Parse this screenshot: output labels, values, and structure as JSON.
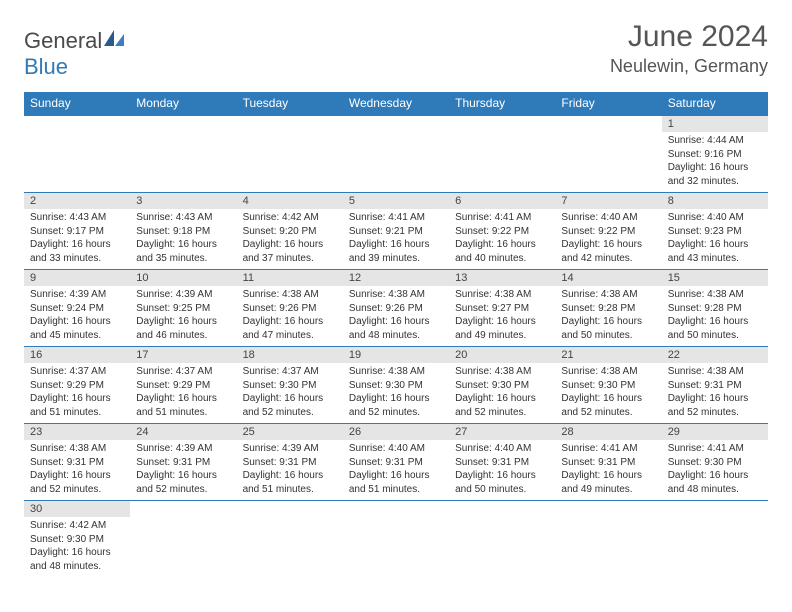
{
  "logo": {
    "general": "General",
    "blue": "Blue"
  },
  "title": "June 2024",
  "location": "Neulewin, Germany",
  "colors": {
    "header_bg": "#2f7ab8",
    "header_text": "#ffffff",
    "daynum_bg": "#e5e5e5",
    "border": "#2f7ab8",
    "text": "#333333",
    "title_text": "#555555"
  },
  "weekdays": [
    "Sunday",
    "Monday",
    "Tuesday",
    "Wednesday",
    "Thursday",
    "Friday",
    "Saturday"
  ],
  "labels": {
    "sunrise": "Sunrise:",
    "sunset": "Sunset:",
    "daylight": "Daylight:"
  },
  "days": {
    "1": {
      "sunrise": "4:44 AM",
      "sunset": "9:16 PM",
      "daylight": "16 hours and 32 minutes."
    },
    "2": {
      "sunrise": "4:43 AM",
      "sunset": "9:17 PM",
      "daylight": "16 hours and 33 minutes."
    },
    "3": {
      "sunrise": "4:43 AM",
      "sunset": "9:18 PM",
      "daylight": "16 hours and 35 minutes."
    },
    "4": {
      "sunrise": "4:42 AM",
      "sunset": "9:20 PM",
      "daylight": "16 hours and 37 minutes."
    },
    "5": {
      "sunrise": "4:41 AM",
      "sunset": "9:21 PM",
      "daylight": "16 hours and 39 minutes."
    },
    "6": {
      "sunrise": "4:41 AM",
      "sunset": "9:22 PM",
      "daylight": "16 hours and 40 minutes."
    },
    "7": {
      "sunrise": "4:40 AM",
      "sunset": "9:22 PM",
      "daylight": "16 hours and 42 minutes."
    },
    "8": {
      "sunrise": "4:40 AM",
      "sunset": "9:23 PM",
      "daylight": "16 hours and 43 minutes."
    },
    "9": {
      "sunrise": "4:39 AM",
      "sunset": "9:24 PM",
      "daylight": "16 hours and 45 minutes."
    },
    "10": {
      "sunrise": "4:39 AM",
      "sunset": "9:25 PM",
      "daylight": "16 hours and 46 minutes."
    },
    "11": {
      "sunrise": "4:38 AM",
      "sunset": "9:26 PM",
      "daylight": "16 hours and 47 minutes."
    },
    "12": {
      "sunrise": "4:38 AM",
      "sunset": "9:26 PM",
      "daylight": "16 hours and 48 minutes."
    },
    "13": {
      "sunrise": "4:38 AM",
      "sunset": "9:27 PM",
      "daylight": "16 hours and 49 minutes."
    },
    "14": {
      "sunrise": "4:38 AM",
      "sunset": "9:28 PM",
      "daylight": "16 hours and 50 minutes."
    },
    "15": {
      "sunrise": "4:38 AM",
      "sunset": "9:28 PM",
      "daylight": "16 hours and 50 minutes."
    },
    "16": {
      "sunrise": "4:37 AM",
      "sunset": "9:29 PM",
      "daylight": "16 hours and 51 minutes."
    },
    "17": {
      "sunrise": "4:37 AM",
      "sunset": "9:29 PM",
      "daylight": "16 hours and 51 minutes."
    },
    "18": {
      "sunrise": "4:37 AM",
      "sunset": "9:30 PM",
      "daylight": "16 hours and 52 minutes."
    },
    "19": {
      "sunrise": "4:38 AM",
      "sunset": "9:30 PM",
      "daylight": "16 hours and 52 minutes."
    },
    "20": {
      "sunrise": "4:38 AM",
      "sunset": "9:30 PM",
      "daylight": "16 hours and 52 minutes."
    },
    "21": {
      "sunrise": "4:38 AM",
      "sunset": "9:30 PM",
      "daylight": "16 hours and 52 minutes."
    },
    "22": {
      "sunrise": "4:38 AM",
      "sunset": "9:31 PM",
      "daylight": "16 hours and 52 minutes."
    },
    "23": {
      "sunrise": "4:38 AM",
      "sunset": "9:31 PM",
      "daylight": "16 hours and 52 minutes."
    },
    "24": {
      "sunrise": "4:39 AM",
      "sunset": "9:31 PM",
      "daylight": "16 hours and 52 minutes."
    },
    "25": {
      "sunrise": "4:39 AM",
      "sunset": "9:31 PM",
      "daylight": "16 hours and 51 minutes."
    },
    "26": {
      "sunrise": "4:40 AM",
      "sunset": "9:31 PM",
      "daylight": "16 hours and 51 minutes."
    },
    "27": {
      "sunrise": "4:40 AM",
      "sunset": "9:31 PM",
      "daylight": "16 hours and 50 minutes."
    },
    "28": {
      "sunrise": "4:41 AM",
      "sunset": "9:31 PM",
      "daylight": "16 hours and 49 minutes."
    },
    "29": {
      "sunrise": "4:41 AM",
      "sunset": "9:30 PM",
      "daylight": "16 hours and 48 minutes."
    },
    "30": {
      "sunrise": "4:42 AM",
      "sunset": "9:30 PM",
      "daylight": "16 hours and 48 minutes."
    }
  },
  "layout": {
    "first_weekday_index": 6,
    "num_days": 30
  }
}
